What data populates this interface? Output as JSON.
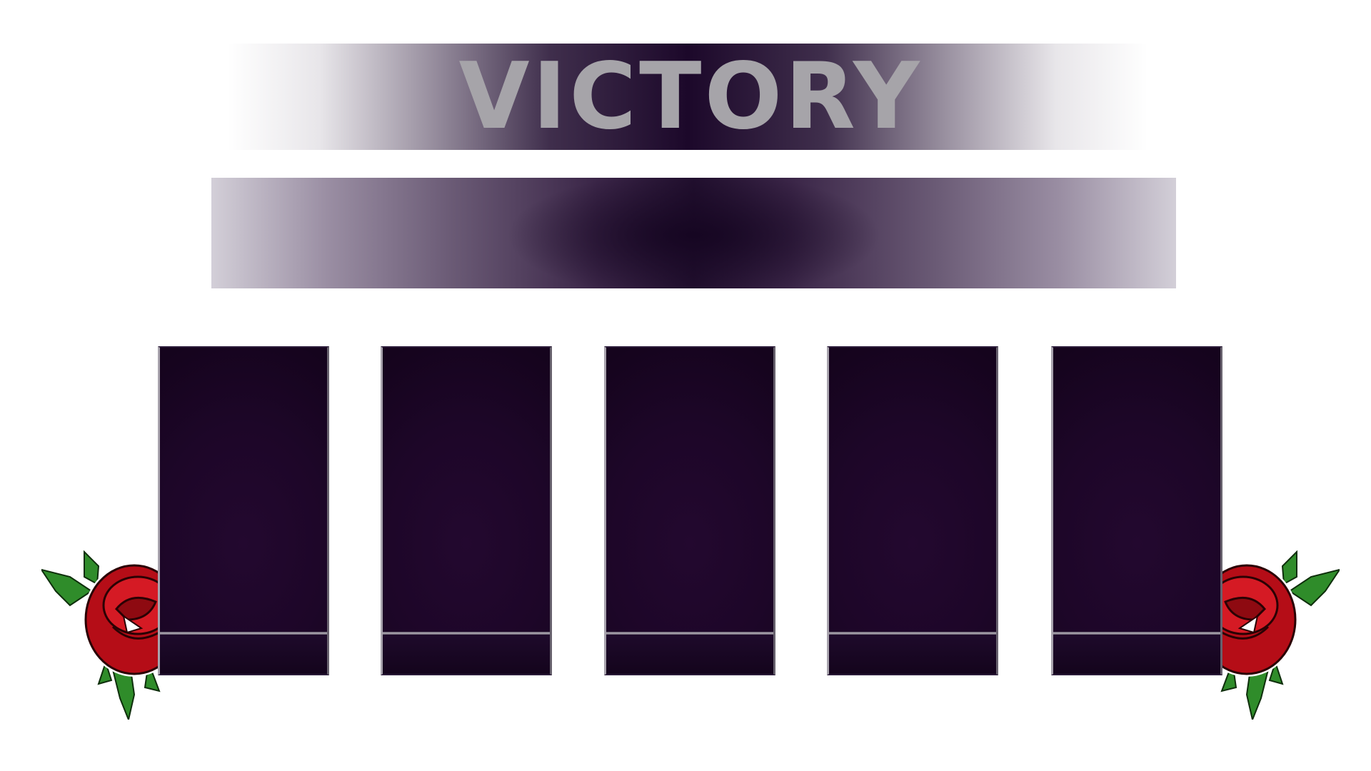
{
  "screen": {
    "title": "VICTORY",
    "subtitle": ""
  },
  "cards": [
    {
      "name": "card-1"
    },
    {
      "name": "card-2"
    },
    {
      "name": "card-3"
    },
    {
      "name": "card-4"
    },
    {
      "name": "card-5"
    }
  ],
  "decorations": {
    "left_icon": "rose-icon",
    "right_icon": "rose-icon"
  },
  "colors": {
    "title_text": "#a6a4a9",
    "banner_dark": "#1c082a",
    "card_background": "#1d0628",
    "rose_red": "#c8101a",
    "leaf_green": "#2f8c2a"
  }
}
